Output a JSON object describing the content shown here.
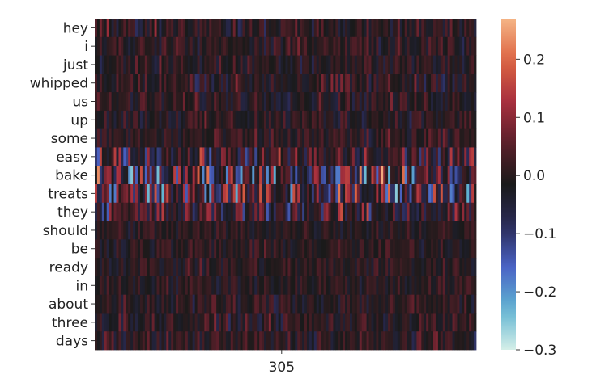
{
  "chart_data": {
    "type": "heatmap",
    "title": "",
    "xlabel": "",
    "ylabel": "",
    "y_tick_labels": [
      "hey",
      "i",
      "just",
      "whipped",
      "us",
      "up",
      "some",
      "easy",
      "bake",
      "treats",
      "they",
      "should",
      "be",
      "ready",
      "in",
      "about",
      "three",
      "days"
    ],
    "x_tick_labels": [
      "305"
    ],
    "n_columns": 160,
    "colormap": "icefire (diverging: light teal - blue - black - red - orange)",
    "colorbar": {
      "min": -0.3,
      "max": 0.27,
      "ticks": [
        -0.3,
        -0.2,
        -0.1,
        0.0,
        0.1,
        0.2
      ],
      "tick_labels": [
        "−0.3",
        "−0.2",
        "−0.1",
        "0.0",
        "0.1",
        "0.2"
      ]
    },
    "row_value_amplitude": [
      0.06,
      0.05,
      0.05,
      0.06,
      0.05,
      0.05,
      0.05,
      0.1,
      0.15,
      0.15,
      0.1,
      0.04,
      0.04,
      0.04,
      0.04,
      0.05,
      0.05,
      0.05
    ],
    "colors": {
      "cmap_stops": [
        "#d5efe8",
        "#5fb3d1",
        "#4a63c5",
        "#2a2a56",
        "#1a1a1a",
        "#5a1f2a",
        "#a8303e",
        "#dd6442",
        "#f5b586"
      ]
    }
  }
}
